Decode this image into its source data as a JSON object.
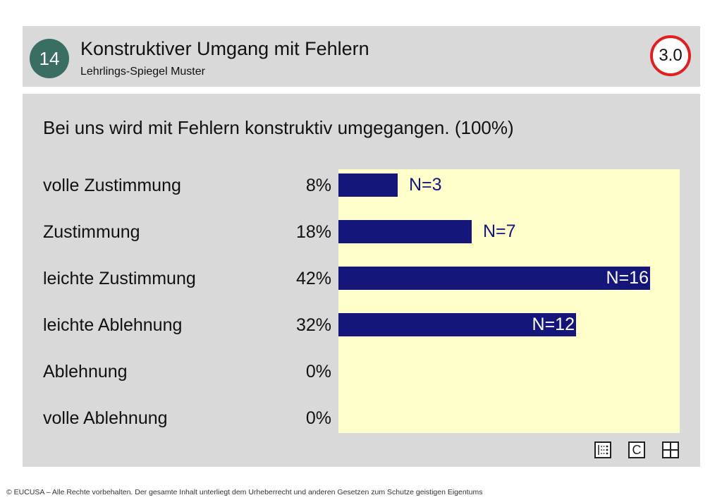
{
  "header": {
    "page_number": "14",
    "title": "Konstruktiver Umgang mit Fehlern",
    "subtitle": "Lehrlings-Spiegel Muster",
    "score": "3.0"
  },
  "colors": {
    "badge": "#3b6e63",
    "score_ring": "#e02020",
    "bar": "#14167a",
    "chart_background": "#ffffcc",
    "panel": "#d9d9d9"
  },
  "chart_data": {
    "type": "bar",
    "orientation": "horizontal",
    "title": "Bei uns wird mit Fehlern konstruktiv umgegangen. (100%)",
    "categories": [
      "volle Zustimmung",
      "Zustimmung",
      "leichte Zustimmung",
      "leichte Ablehnung",
      "Ablehnung",
      "volle Ablehnung"
    ],
    "values": [
      8,
      18,
      42,
      32,
      0,
      0
    ],
    "value_labels": [
      "8%",
      "18%",
      "42%",
      "32%",
      "0%",
      "0%"
    ],
    "counts": [
      3,
      7,
      16,
      12,
      0,
      0
    ],
    "count_labels": [
      "N=3",
      "N=7",
      "N=16",
      "N=12",
      "",
      ""
    ],
    "xlim": [
      0,
      46
    ],
    "grid": false,
    "legend": "none"
  },
  "toolbar": {
    "icons": [
      "list-icon",
      "c-icon",
      "grid-icon"
    ],
    "c_label": "C"
  },
  "footer": {
    "text": "© EUCUSA – Alle Rechte vorbehalten. Der gesamte Inhalt unterliegt dem Urheberrecht und anderen Gesetzen zum Schutze geistigen Eigentums"
  }
}
